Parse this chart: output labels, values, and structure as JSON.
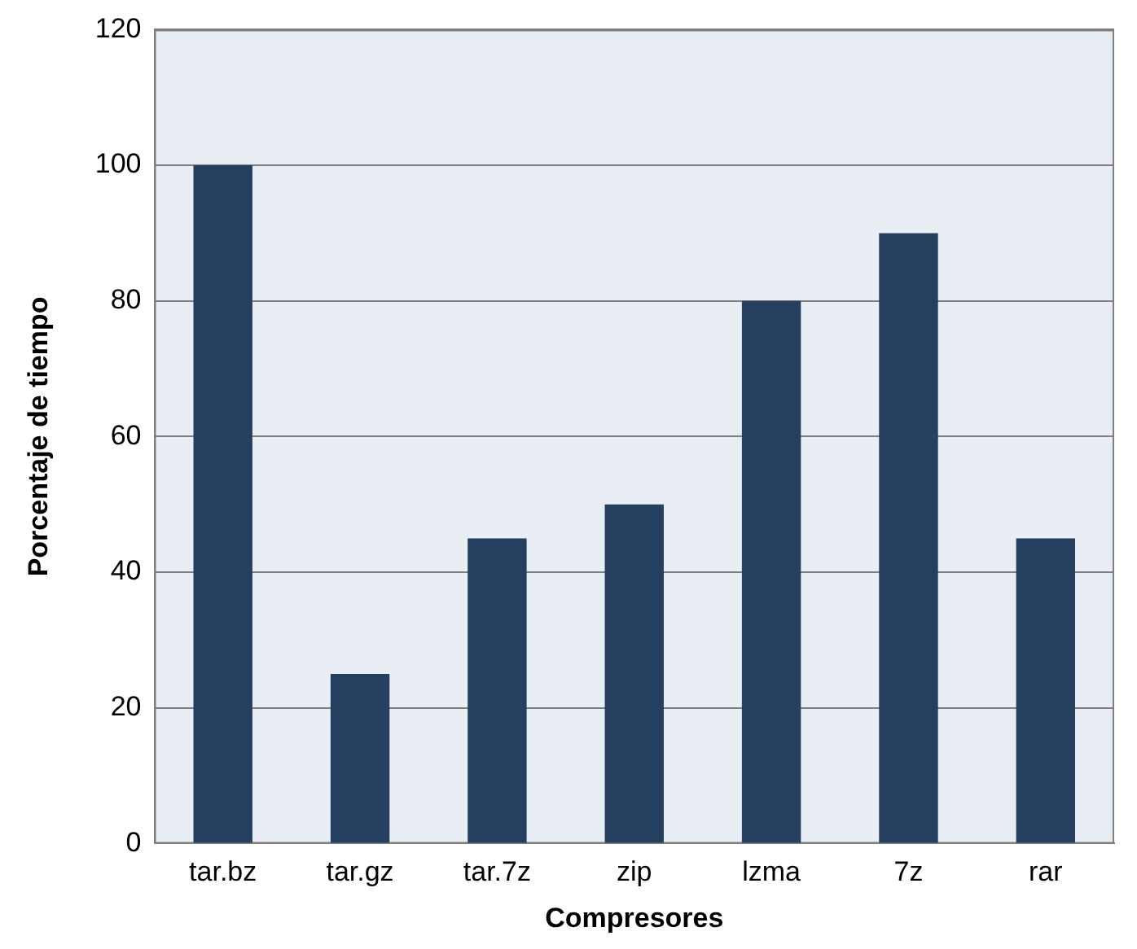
{
  "chart_data": {
    "type": "bar",
    "xlabel": "Compresores",
    "ylabel": "Porcentaje de tiempo",
    "categories": [
      "tar.bz",
      "tar.gz",
      "tar.7z",
      "zip",
      "lzma",
      "7z",
      "rar"
    ],
    "values": [
      100,
      25,
      45,
      50,
      80,
      90,
      45
    ],
    "color": "#243f60",
    "ylim": [
      0,
      120
    ],
    "yticks": [
      0,
      20,
      40,
      60,
      80,
      100,
      120
    ],
    "grid": "y",
    "legend": false
  }
}
